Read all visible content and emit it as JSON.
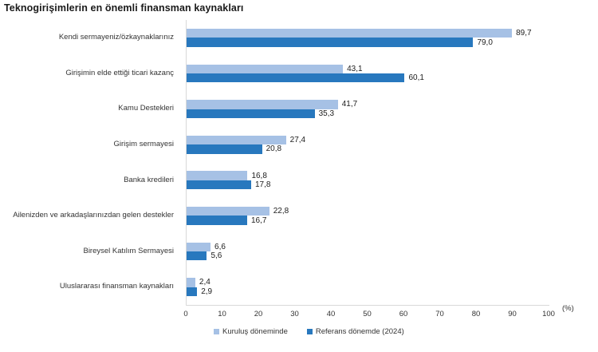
{
  "title": "Teknogirişimlerin en önemli finansman kaynakları",
  "colors": {
    "series_light": "#a6c1e5",
    "series_dark": "#2878be",
    "axis_line": "#d9d9d9",
    "text": "#333333"
  },
  "chart_data": {
    "type": "bar",
    "orientation": "horizontal",
    "title": "Teknogirişimlerin en önemli finansman kaynakları",
    "categories": [
      "Kendi sermayeniz/özkaynaklarınız",
      "Girişimin elde ettiği ticari kazanç",
      "Kamu Destekleri",
      "Girişim sermayesi",
      "Banka kredileri",
      "Ailenizden ve arkadaşlarınızdan gelen destekler",
      "Bireysel Katılım Sermayesi",
      "Uluslararası finansman kaynakları"
    ],
    "series": [
      {
        "name": "Kuruluş döneminde",
        "color": "#a6c1e5",
        "values": [
          89.7,
          43.1,
          41.7,
          27.4,
          16.8,
          22.8,
          6.6,
          2.4
        ]
      },
      {
        "name": "Referans dönemde (2024)",
        "color": "#2878be",
        "values": [
          79.0,
          60.1,
          35.3,
          20.8,
          17.8,
          16.7,
          5.6,
          2.9
        ]
      }
    ],
    "value_labels": [
      [
        "89,7",
        "43,1",
        "41,7",
        "27,4",
        "16,8",
        "22,8",
        "6,6",
        "2,4"
      ],
      [
        "79,0",
        "60,1",
        "35,3",
        "20,8",
        "17,8",
        "16,7",
        "5,6",
        "2,9"
      ]
    ],
    "xlabel": "(%)",
    "xlim": [
      0,
      100
    ],
    "xticks": [
      0,
      10,
      20,
      30,
      40,
      50,
      60,
      70,
      80,
      90,
      100
    ],
    "decimal_separator": ",",
    "grid": false,
    "legend_position": "bottom"
  }
}
